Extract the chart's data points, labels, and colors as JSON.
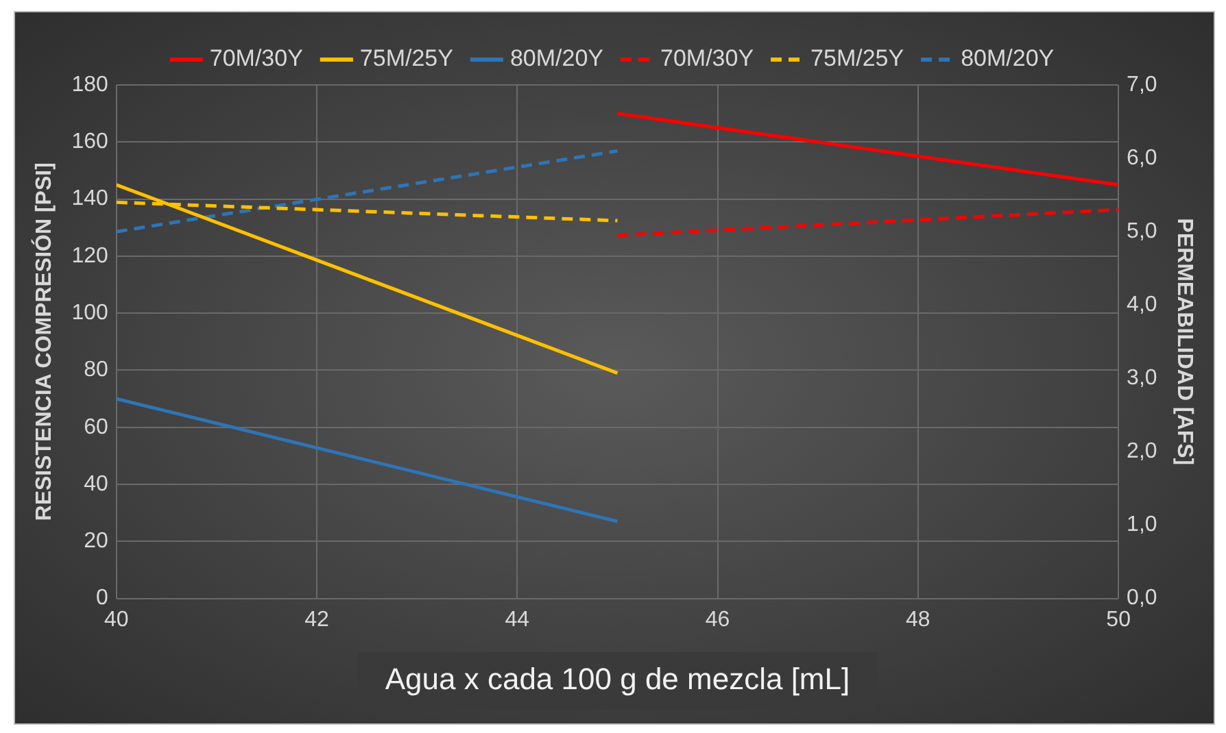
{
  "chart_data": {
    "type": "line",
    "xlabel": "Agua x cada 100 g de mezcla [mL]",
    "ylabel": "RESISTENCIA COMPRESIÓN [PSI]",
    "y2label": "PERMEABILIDAD [AFS]",
    "xlim": [
      40,
      50
    ],
    "xticks": [
      40,
      42,
      44,
      46,
      48,
      50
    ],
    "ylim": [
      0,
      180
    ],
    "yticks": [
      0,
      20,
      40,
      60,
      80,
      100,
      120,
      140,
      160,
      180
    ],
    "y2lim": [
      0,
      7
    ],
    "y2ticks": [
      {
        "value": 0,
        "label": "0,0"
      },
      {
        "value": 1,
        "label": "1,0"
      },
      {
        "value": 2,
        "label": "2,0"
      },
      {
        "value": 3,
        "label": "3,0"
      },
      {
        "value": 4,
        "label": "4,0"
      },
      {
        "value": 5,
        "label": "5,0"
      },
      {
        "value": 6,
        "label": "6,0"
      },
      {
        "value": 7,
        "label": "7,0"
      }
    ],
    "grid": true,
    "legend": "top",
    "marker": "none",
    "series": [
      {
        "name": "70M/30Y",
        "color": "#ff0000",
        "x": [
          45,
          50
        ],
        "values": [
          170,
          145
        ],
        "line_style": "solid"
      },
      {
        "name": "75M/25Y",
        "color": "#ffc000",
        "x": [
          40,
          45
        ],
        "values": [
          145,
          79
        ],
        "line_style": "solid"
      },
      {
        "name": "80M/20Y",
        "color": "#2e75b6",
        "x": [
          40,
          45
        ],
        "values": [
          70,
          27
        ],
        "line_style": "solid"
      },
      {
        "name": "70M/30Y",
        "color": "#ff0000",
        "x": [
          45,
          50
        ],
        "values": [
          4.95,
          5.3
        ],
        "axis": "y2",
        "line_style": "dashed"
      },
      {
        "name": "75M/25Y",
        "color": "#ffc000",
        "x": [
          40,
          45
        ],
        "values": [
          5.4,
          5.15
        ],
        "axis": "y2",
        "line_style": "dashed"
      },
      {
        "name": "80M/20Y",
        "color": "#2e75b6",
        "x": [
          40,
          45
        ],
        "values": [
          5.0,
          6.1
        ],
        "axis": "y2",
        "line_style": "dashed"
      }
    ]
  }
}
